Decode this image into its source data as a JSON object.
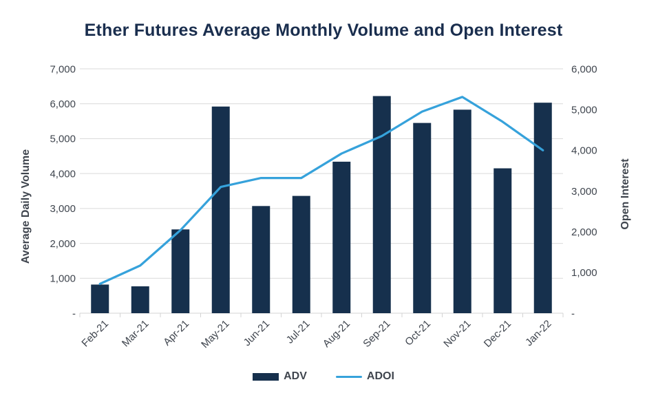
{
  "title": "Ether Futures Average Monthly Volume and Open Interest",
  "chart_data": {
    "type": "bar",
    "subtype": "combo-bar-line-dual-axis",
    "categories": [
      "Feb-21",
      "Mar-21",
      "Apr-21",
      "May-21",
      "Jun-21",
      "Jul-21",
      "Aug-21",
      "Sep-21",
      "Oct-21",
      "Nov-21",
      "Dec-21",
      "Jan-22"
    ],
    "series": [
      {
        "name": "ADV",
        "type": "bar",
        "axis": "left",
        "values": [
          820,
          770,
          2400,
          5920,
          3070,
          3360,
          4340,
          6220,
          5450,
          5830,
          4150,
          6030
        ]
      },
      {
        "name": "ADOI",
        "type": "line",
        "axis": "right",
        "values": [
          720,
          1170,
          2040,
          3100,
          3320,
          3320,
          3920,
          4350,
          4950,
          5310,
          4700,
          4000
        ]
      }
    ],
    "left_axis": {
      "title": "Average Daily Volume",
      "min": 0,
      "max": 7000,
      "step": 1000,
      "labels": [
        "7,000",
        "6,000",
        "5,000",
        "4,000",
        "3,000",
        "2,000",
        "1,000",
        "-"
      ]
    },
    "right_axis": {
      "title": "Open Interest",
      "min": 0,
      "max": 6000,
      "step": 1000,
      "labels": [
        "6,000",
        "5,000",
        "4,000",
        "3,000",
        "2,000",
        "1,000",
        "-"
      ]
    },
    "grid": true,
    "legend_position": "bottom"
  },
  "legend": {
    "adv_label": "ADV",
    "adoi_label": "ADOI"
  },
  "colors": {
    "bar": "#16304D",
    "line": "#36A2DB",
    "title": "#1A2E4E",
    "tick": "#3F454E",
    "grid": "#D9D9D9",
    "axis_line": "#D3D3D3",
    "background": "#FFFFFF"
  }
}
